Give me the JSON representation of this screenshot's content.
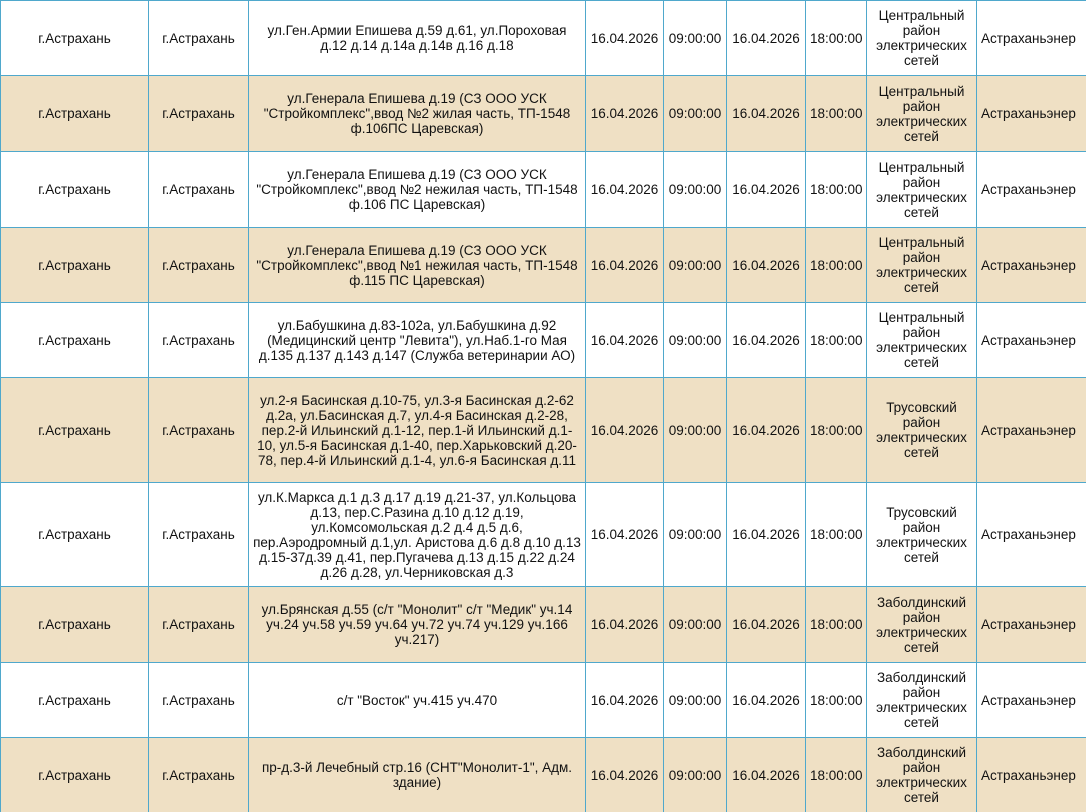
{
  "table": {
    "rows": [
      [
        "г.Астрахань",
        "г.Астрахань",
        "ул.Ген.Армии Епишева д.59 д.61, ул.Пороховая д.12 д.14 д.14а д.14в д.16 д.18",
        "16.04.2026",
        "09:00:00",
        "16.04.2026",
        "18:00:00",
        "Центральный район электрических сетей",
        "Астраханьэнер"
      ],
      [
        "г.Астрахань",
        "г.Астрахань",
        "ул.Генерала Епишева д.19 (СЗ ООО УСК \"Стройкомплекс\",ввод №2 жилая часть, ТП-1548 ф.106ПС Царевская)",
        "16.04.2026",
        "09:00:00",
        "16.04.2026",
        "18:00:00",
        "Центральный район электрических сетей",
        "Астраханьэнер"
      ],
      [
        "г.Астрахань",
        "г.Астрахань",
        "ул.Генерала Епишева д.19 (СЗ ООО УСК \"Стройкомплекс\",ввод №2 нежилая часть, ТП-1548 ф.106 ПС Царевская)",
        "16.04.2026",
        "09:00:00",
        "16.04.2026",
        "18:00:00",
        "Центральный район электрических сетей",
        "Астраханьэнер"
      ],
      [
        "г.Астрахань",
        "г.Астрахань",
        "ул.Генерала Епишева д.19 (СЗ ООО УСК \"Стройкомплекс\",ввод №1 нежилая часть, ТП-1548 ф.115 ПС Царевская)",
        "16.04.2026",
        "09:00:00",
        "16.04.2026",
        "18:00:00",
        "Центральный район электрических сетей",
        "Астраханьэнер"
      ],
      [
        "г.Астрахань",
        "г.Астрахань",
        "ул.Бабушкина д.83-102а, ул.Бабушкина д.92 (Медицинский центр \"Левита\"), ул.Наб.1-го Мая д.135 д.137 д.143 д.147 (Служба ветеринарии АО)",
        "16.04.2026",
        "09:00:00",
        "16.04.2026",
        "18:00:00",
        "Центральный район электрических сетей",
        "Астраханьэнер"
      ],
      [
        "г.Астрахань",
        "г.Астрахань",
        "ул.2-я Басинская д.10-75, ул.3-я Басинская д.2-62 д.2а, ул.Басинская д.7, ул.4-я Басинская д.2-28, пер.2-й Ильинский д.1-12, пер.1-й Ильинский д.1-10, ул.5-я Басинская д.1-40, пер.Харьковский д.20-78, пер.4-й Ильинский д.1-4, ул.6-я Басинская д.11",
        "16.04.2026",
        "09:00:00",
        "16.04.2026",
        "18:00:00",
        "Трусовский район электрических сетей",
        "Астраханьэнер"
      ],
      [
        "г.Астрахань",
        "г.Астрахань",
        "ул.К.Маркса д.1 д.3 д.17 д.19 д.21-37, ул.Кольцова д.13, пер.С.Разина д.10 д.12 д.19, ул.Комсомольская д.2 д.4 д.5 д.6, пер.Аэродромный д.1,ул. Аристова д.6 д.8 д.10 д.13 д.15-37д.39 д.41, пер.Пугачева д.13 д.15 д.22 д.24 д.26 д.28, ул.Черниковская д.3",
        "16.04.2026",
        "09:00:00",
        "16.04.2026",
        "18:00:00",
        "Трусовский район электрических сетей",
        "Астраханьэнер"
      ],
      [
        "г.Астрахань",
        "г.Астрахань",
        "ул.Брянская д.55 (с/т \"Монолит\" с/т \"Медик\" уч.14 уч.24 уч.58 уч.59 уч.64 уч.72 уч.74 уч.129 уч.166 уч.217)",
        "16.04.2026",
        "09:00:00",
        "16.04.2026",
        "18:00:00",
        "Заболдинский район электрических сетей",
        "Астраханьэнер"
      ],
      [
        "г.Астрахань",
        "г.Астрахань",
        "с/т \"Восток\" уч.415 уч.470",
        "16.04.2026",
        "09:00:00",
        "16.04.2026",
        "18:00:00",
        "Заболдинский район электрических сетей",
        "Астраханьэнер"
      ],
      [
        "г.Астрахань",
        "г.Астрахань",
        "пр-д.3-й Лечебный стр.16 (СНТ\"Монолит-1\", Адм. здание)",
        "16.04.2026",
        "09:00:00",
        "16.04.2026",
        "18:00:00",
        "Заболдинский район электрических сетей",
        "Астраханьэнер"
      ]
    ]
  }
}
